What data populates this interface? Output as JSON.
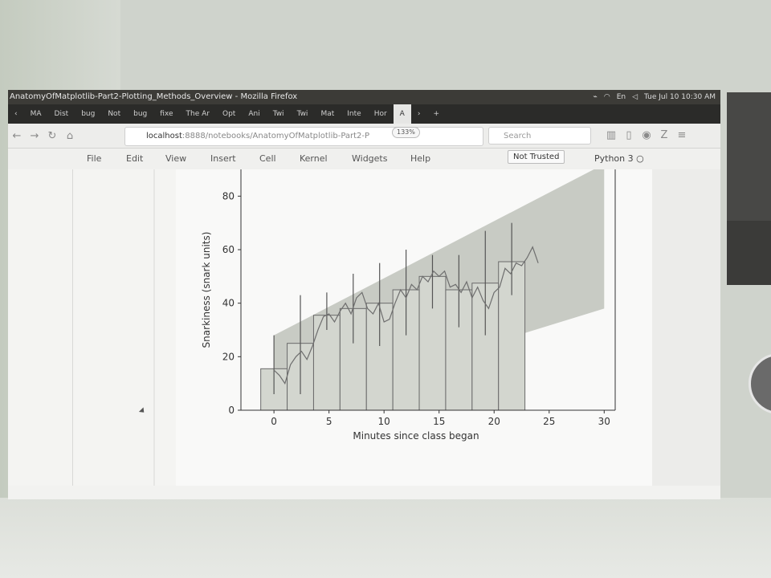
{
  "window": {
    "title": "AnatomyOfMatplotlib-Part2-Plotting_Methods_Overview - Mozilla Firefox",
    "clock": "Tue Jul 10 10:30 AM",
    "tabs": [
      "MA",
      "Dist",
      "bug",
      "Not",
      "bug",
      "fixe",
      "The Ar",
      "Opt",
      "Ani",
      "Twi",
      "Twi",
      "Mat",
      "Inte",
      "Hor",
      "A"
    ]
  },
  "navbar": {
    "url_host": "localhost",
    "url_path": ":8888/notebooks/AnatomyOfMatplotlib-Part2-P",
    "zoom": "133%",
    "search_placeholder": "Search"
  },
  "notebook": {
    "menu": [
      "File",
      "Edit",
      "View",
      "Insert",
      "Cell",
      "Kernel",
      "Widgets",
      "Help"
    ],
    "trusted": "Not Trusted",
    "kernel": "Python 3"
  },
  "chart_data": {
    "type": "bar",
    "xlabel": "Minutes since class began",
    "ylabel": "Snarkiness (snark units)",
    "xlim": [
      -3,
      31
    ],
    "ylim": [
      0,
      90
    ],
    "xticks": [
      0,
      5,
      10,
      15,
      20,
      25,
      30
    ],
    "yticks": [
      0,
      20,
      40,
      60,
      80
    ],
    "fill_between": {
      "x": [
        0,
        30
      ],
      "upper": [
        28,
        92
      ],
      "lower": [
        0,
        38
      ],
      "color": "#c8cbc4"
    },
    "bars": {
      "left": [
        -1.2,
        1.2,
        3.6,
        6.0,
        8.4,
        10.8,
        13.2,
        15.6,
        18.0,
        20.4
      ],
      "width": 2.4,
      "heights": [
        15.5,
        25,
        35.5,
        38,
        40,
        45,
        50,
        45,
        47.5,
        55.5
      ],
      "color": "#d3d6cf",
      "edge": "#6a6a6a"
    },
    "errorbars": {
      "x": [
        0,
        2.4,
        4.8,
        7.2,
        9.6,
        12,
        14.4,
        16.8,
        19.2,
        21.6
      ],
      "y": [
        15.5,
        25,
        35.5,
        38,
        40,
        45,
        50,
        45,
        47.5,
        55.5
      ],
      "lo": [
        6,
        6,
        30,
        25,
        24,
        28,
        38,
        31,
        28,
        43
      ],
      "hi": [
        28,
        43,
        44,
        51,
        55,
        60,
        58,
        58,
        67,
        70
      ]
    },
    "line": {
      "x": [
        0,
        0.5,
        1,
        1.5,
        2,
        2.5,
        3,
        3.5,
        4,
        4.5,
        5,
        5.5,
        6,
        6.5,
        7,
        7.5,
        8,
        8.5,
        9,
        9.5,
        10,
        10.5,
        11,
        11.5,
        12,
        12.5,
        13,
        13.5,
        14,
        14.5,
        15,
        15.5,
        16,
        16.5,
        17,
        17.5,
        18,
        18.5,
        19,
        19.5,
        20,
        20.5,
        21,
        21.5,
        22,
        22.5,
        23,
        23.5,
        24
      ],
      "y": [
        15,
        13,
        10,
        17,
        20,
        22,
        19,
        24,
        30,
        35,
        36,
        33,
        37,
        40,
        36,
        42,
        44,
        38,
        36,
        40,
        33,
        34,
        40,
        45,
        42,
        47,
        45,
        50,
        48,
        52,
        50,
        52,
        46,
        47,
        44,
        48,
        42,
        46,
        41,
        38,
        44,
        46,
        53,
        51,
        55,
        54,
        57,
        61,
        55
      ]
    }
  }
}
